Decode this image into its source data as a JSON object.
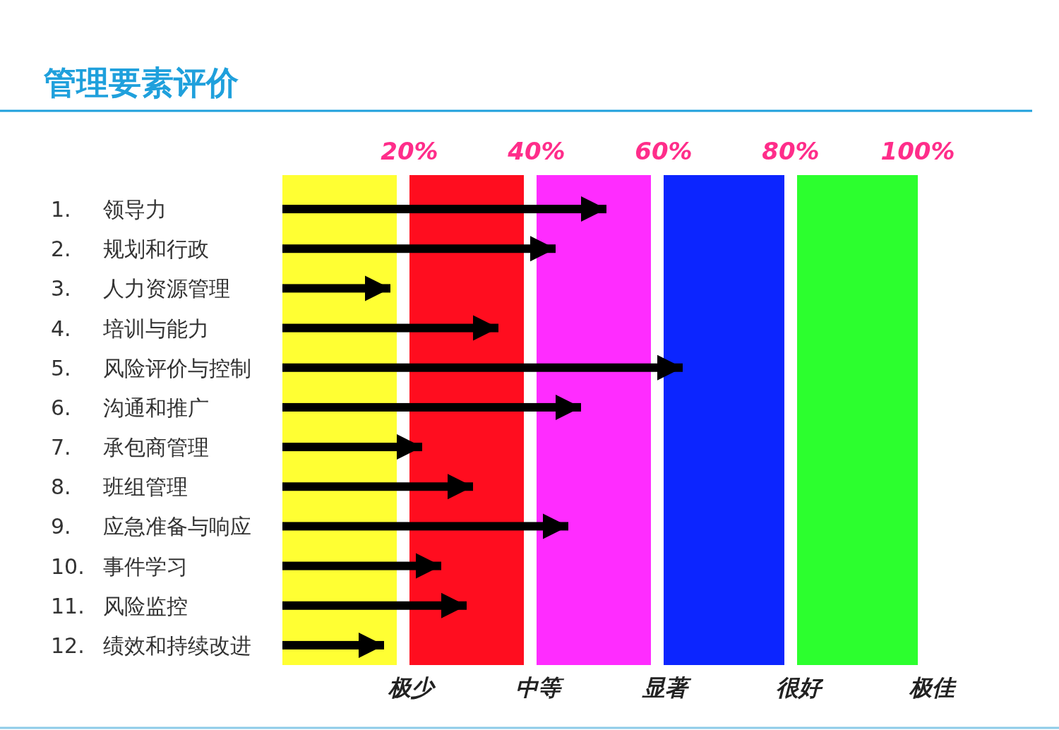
{
  "chart_data": {
    "type": "bar",
    "orientation": "horizontal",
    "title": "管理要素评价",
    "categories": [
      "1. 领导力",
      "2. 规划和行政",
      "3. 人力资源管理",
      "4. 培训与能力",
      "5. 风险评价与控制",
      "6. 沟通和推广",
      "7. 承包商管理",
      "8. 班组管理",
      "9. 应急准备与响应",
      "10. 事件学习",
      "11. 风险监控",
      "12. 绩效和持续改进"
    ],
    "values": [
      51,
      43,
      17,
      34,
      63,
      47,
      22,
      30,
      45,
      25,
      29,
      16
    ],
    "color": "#000000",
    "xlim": [
      0,
      100
    ],
    "xticks": [
      {
        "value": 20,
        "label": "20%"
      },
      {
        "value": 40,
        "label": "40%"
      },
      {
        "value": 60,
        "label": "60%"
      },
      {
        "value": 80,
        "label": "80%"
      },
      {
        "value": 100,
        "label": "100%"
      }
    ],
    "bands": [
      {
        "axis": "x",
        "from": 0,
        "to": 18,
        "color": "#ffff33",
        "label": "极少"
      },
      {
        "axis": "x",
        "from": 20,
        "to": 38,
        "color": "#ff0d1f",
        "label": "中等"
      },
      {
        "axis": "x",
        "from": 40,
        "to": 58,
        "color": "#ff2cff",
        "label": "显著"
      },
      {
        "axis": "x",
        "from": 60,
        "to": 79,
        "color": "#0c25ff",
        "label": "很好"
      },
      {
        "axis": "x",
        "from": 81,
        "to": 100,
        "color": "#2cff2e",
        "label": "极佳"
      }
    ],
    "grid": false
  }
}
